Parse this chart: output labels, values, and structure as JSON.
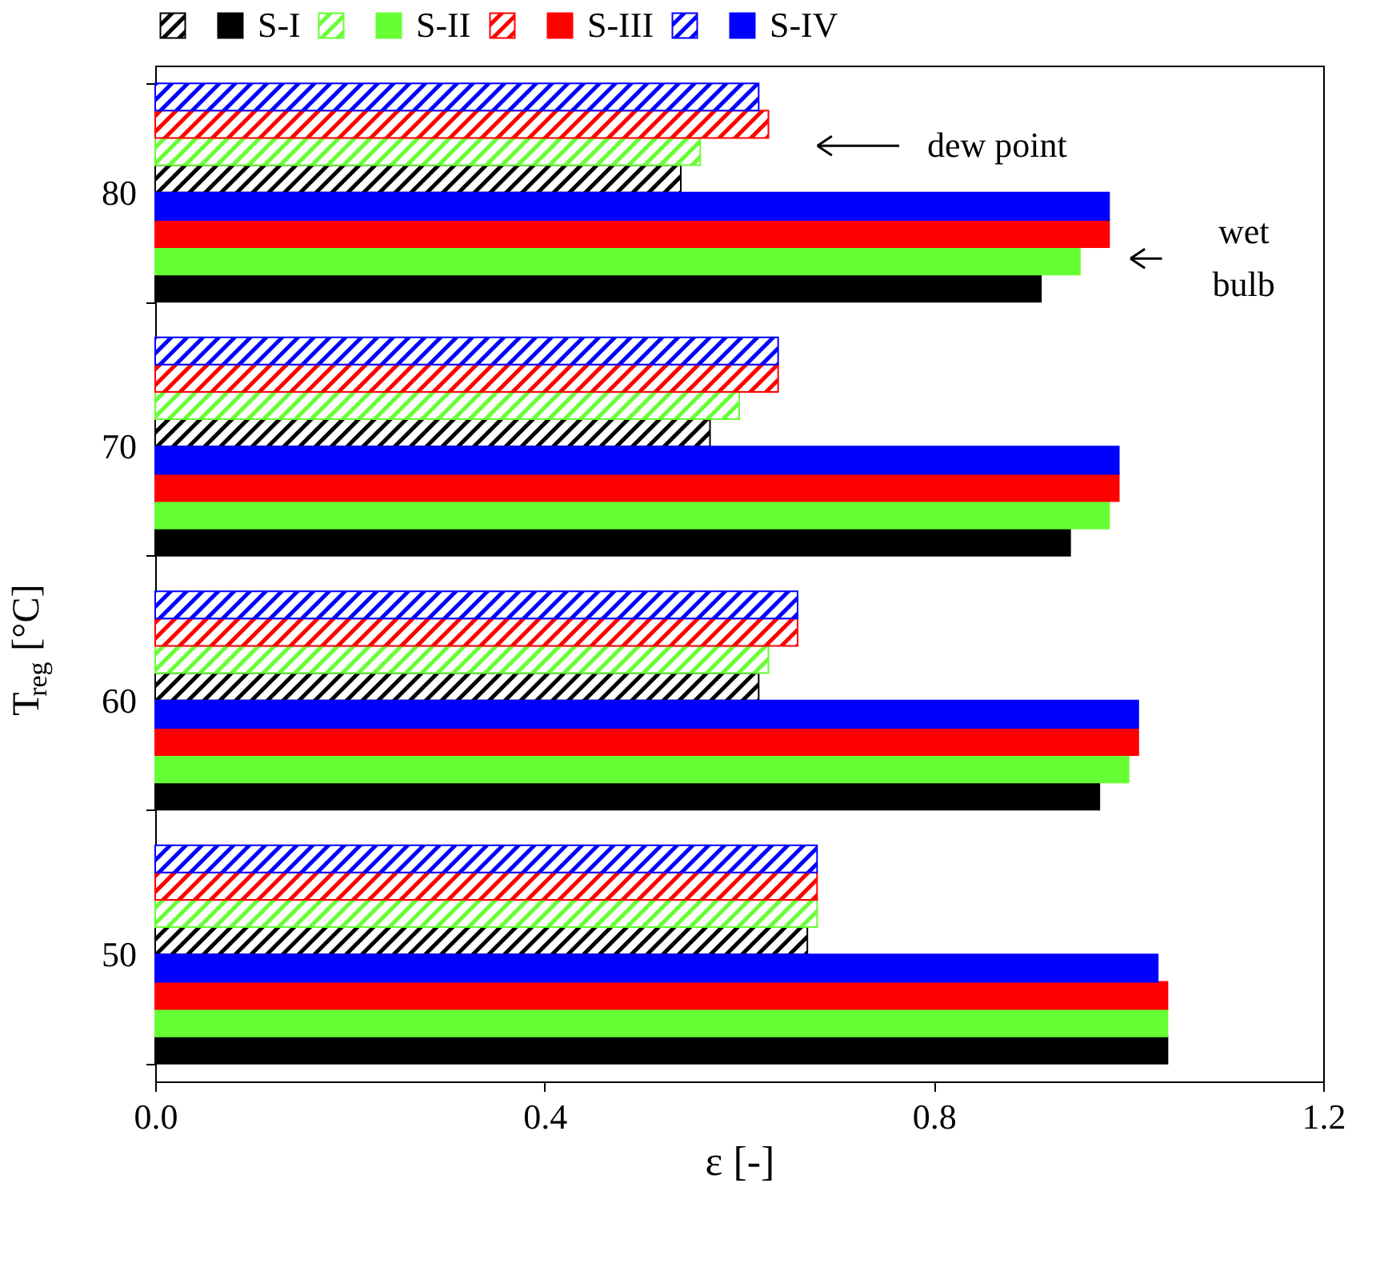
{
  "chart_data": {
    "type": "bar",
    "orientation": "horizontal",
    "xlabel": "ε [-]",
    "ylabel": "T$_{reg}$ [°C]",
    "categories": [
      "80",
      "70",
      "60",
      "50"
    ],
    "xlim": [
      0,
      1.2
    ],
    "xticks": [
      {
        "value": 0,
        "label": "0.0"
      },
      0.4,
      0.8,
      {
        "value": 1.2,
        "label": "1.2"
      }
    ],
    "legend": "top",
    "grid": false,
    "series": [
      {
        "name": "S-I",
        "color": "#000000",
        "values": [
          0.91,
          0.94,
          0.97,
          1.04
        ]
      },
      {
        "color": "#000000",
        "values": [
          0.54,
          0.57,
          0.62,
          0.67
        ]
      },
      {
        "name": "S-II",
        "color": "#66ff33",
        "values": [
          0.95,
          0.98,
          1.0,
          1.04
        ]
      },
      {
        "color": "#66ff33",
        "values": [
          0.56,
          0.6,
          0.63,
          0.68
        ]
      },
      {
        "name": "S-III",
        "color": "#ff0000",
        "values": [
          0.98,
          0.99,
          1.01,
          1.04
        ]
      },
      {
        "color": "#ff0000",
        "values": [
          0.63,
          0.64,
          0.66,
          0.68
        ]
      },
      {
        "name": "S-IV",
        "color": "#0000ff",
        "values": [
          0.98,
          0.99,
          1.01,
          1.03
        ]
      },
      {
        "color": "#0000ff",
        "values": [
          0.62,
          0.64,
          0.66,
          0.68
        ]
      }
    ],
    "annotations": [
      "dew point",
      "wet\nbulb"
    ]
  }
}
